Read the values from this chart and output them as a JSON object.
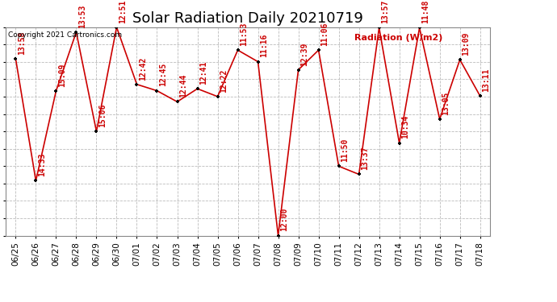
{
  "title": "Solar Radiation Daily 20210719",
  "ylabel_text": "Radiation (W/m2)",
  "copyright_text": "Copyright 2021 Cartronics.com",
  "ylim": [
    359.0,
    1077.0
  ],
  "yticks": [
    359.0,
    418.8,
    478.7,
    538.5,
    598.3,
    658.2,
    718.0,
    777.8,
    837.7,
    897.5,
    957.3,
    1017.2,
    1077.0
  ],
  "dates": [
    "06/25",
    "06/26",
    "06/27",
    "06/28",
    "06/29",
    "06/30",
    "07/01",
    "07/02",
    "07/03",
    "07/04",
    "07/05",
    "07/06",
    "07/07",
    "07/08",
    "07/09",
    "07/10",
    "07/11",
    "07/12",
    "07/13",
    "07/14",
    "07/15",
    "07/16",
    "07/17",
    "07/18"
  ],
  "values": [
    968,
    548,
    857,
    1060,
    718,
    1077,
    880,
    858,
    820,
    865,
    838,
    998,
    958,
    359,
    930,
    998,
    598,
    570,
    1075,
    678,
    1075,
    760,
    965,
    840
  ],
  "time_labels": [
    "13:58",
    "14:33",
    "15:09",
    "13:53",
    "15:06",
    "12:51",
    "12:42",
    "12:45",
    "12:44",
    "12:41",
    "12:22",
    "11:53",
    "11:16",
    "12:00",
    "12:39",
    "11:06",
    "11:50",
    "13:37",
    "13:57",
    "10:34",
    "11:48",
    "13:05",
    "13:09",
    "13:11"
  ],
  "line_color": "#cc0000",
  "marker_color": "#000000",
  "marker_size": 3,
  "line_width": 1.2,
  "label_color": "#cc0000",
  "label_fontsize": 7,
  "title_fontsize": 13,
  "grid_color": "#bbbbbb",
  "background_color": "#ffffff",
  "plot_bg_color": "#ffffff"
}
